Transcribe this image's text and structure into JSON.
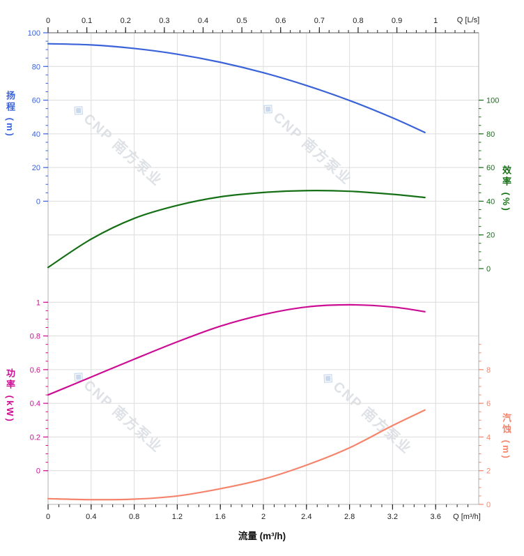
{
  "page": {
    "background": "#ffffff",
    "description": "Pump performance curves chart"
  },
  "watermark": {
    "text": "CNP 南方泵业",
    "logo_glyph": "◈"
  },
  "chart_data": {
    "type": "line",
    "grid": true,
    "legend": false,
    "x_axis_bottom": {
      "label": "Q [m³/h]",
      "title": "流量 (m³/h)",
      "unit": "m³/h",
      "range": [
        0,
        4
      ],
      "major_tick_step": 0.4,
      "minor_tick_step": 0.1,
      "minor_range": [
        0,
        3.9
      ],
      "tick_values": [
        0,
        0.4,
        0.8,
        1.2,
        1.6,
        2,
        2.4,
        2.8,
        3.2,
        3.6
      ],
      "tick_labels": [
        "0",
        "0.4",
        "0.8",
        "1.2",
        "1.6",
        "2",
        "2.4",
        "2.8",
        "3.2",
        "3.6"
      ],
      "color": "#222222"
    },
    "x_axis_top": {
      "label": "Q [L/s]",
      "unit": "L/s",
      "range": [
        0,
        1.11
      ],
      "major_tick_step": 0.1,
      "minor_tick_step": 0.025,
      "minor_range": [
        0,
        1.1
      ],
      "tick_values": [
        0,
        0.1,
        0.2,
        0.3,
        0.4,
        0.5,
        0.6,
        0.7,
        0.8,
        0.9,
        1
      ],
      "tick_labels": [
        "0",
        "0.1",
        "0.2",
        "0.3",
        "0.4",
        "0.5",
        "0.6",
        "0.7",
        "0.8",
        "0.9",
        "1"
      ],
      "color": "#222222"
    },
    "y_axes": [
      {
        "id": "head",
        "title": "扬程",
        "unit": "(m)",
        "side": "left",
        "color": "#3a62d9",
        "range": [
          0,
          100
        ],
        "tick_values": [
          100,
          80,
          60,
          40,
          20,
          0
        ],
        "tick_labels": [
          "100",
          "80",
          "60",
          "40",
          "20",
          "0"
        ],
        "minor_step": 5,
        "minor_range": [
          0,
          100
        ]
      },
      {
        "id": "efficiency",
        "title": "效率",
        "unit": "(%)",
        "side": "right",
        "color": "#157015",
        "range": [
          0,
          100
        ],
        "tick_values": [
          100,
          80,
          60,
          40,
          20,
          0
        ],
        "tick_labels": [
          "100",
          "80",
          "60",
          "40",
          "20",
          "0"
        ],
        "minor_step": 5,
        "minor_range": [
          0,
          100
        ]
      },
      {
        "id": "power",
        "title": "功率",
        "unit": "(kW)",
        "side": "left",
        "color": "#cc0d93",
        "range": [
          0,
          1
        ],
        "tick_values": [
          1,
          0.8,
          0.6,
          0.4,
          0.2,
          0
        ],
        "tick_labels": [
          "1",
          "0.8",
          "0.6",
          "0.4",
          "0.2",
          "0"
        ],
        "minor_step": 0.05,
        "minor_range": [
          0,
          1
        ]
      },
      {
        "id": "npsh",
        "title": "汽蚀",
        "unit": "(m)",
        "side": "right",
        "color": "#f5846c",
        "range": [
          0,
          8
        ],
        "tick_values": [
          8,
          6,
          4,
          2,
          0
        ],
        "tick_labels": [
          "8",
          "6",
          "4",
          "2",
          "0"
        ],
        "minor_step": 0.5,
        "minor_range": [
          0,
          9.5
        ]
      }
    ],
    "series": [
      {
        "id": "head",
        "name": "扬程 H",
        "axis": "head",
        "color": "#3a62d9",
        "x": [
          0,
          0.4,
          0.8,
          1.2,
          1.6,
          2.0,
          2.4,
          2.8,
          3.2,
          3.5
        ],
        "y": [
          93.5,
          92.8,
          90.7,
          87.3,
          82.5,
          76.3,
          68.7,
          59.8,
          49.5,
          40.8
        ]
      },
      {
        "id": "efficiency",
        "name": "效率 η",
        "axis": "efficiency",
        "color": "#157015",
        "x": [
          0,
          0.4,
          0.8,
          1.2,
          1.6,
          2.0,
          2.4,
          2.8,
          3.2,
          3.5
        ],
        "y": [
          0.7,
          17.5,
          29.8,
          37.5,
          42.6,
          45.2,
          46.3,
          45.9,
          44.1,
          42.2
        ]
      },
      {
        "id": "power",
        "name": "功率 P",
        "axis": "power",
        "color": "#cc0d93",
        "x": [
          0,
          0.4,
          0.8,
          1.2,
          1.6,
          2.0,
          2.4,
          2.8,
          3.2,
          3.5
        ],
        "y": [
          0.45,
          0.556,
          0.662,
          0.765,
          0.858,
          0.927,
          0.972,
          0.985,
          0.972,
          0.944
        ]
      },
      {
        "id": "npsh",
        "name": "汽蚀 NPSH",
        "axis": "npsh",
        "color": "#f5846c",
        "x": [
          0,
          0.4,
          0.8,
          1.2,
          1.6,
          2.0,
          2.4,
          2.8,
          3.2,
          3.5
        ],
        "y": [
          0.34,
          0.28,
          0.31,
          0.5,
          0.93,
          1.5,
          2.33,
          3.36,
          4.68,
          5.6
        ]
      }
    ]
  }
}
